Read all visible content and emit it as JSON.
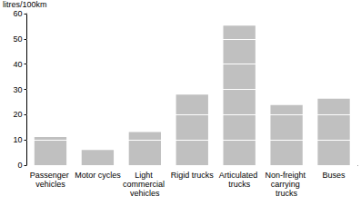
{
  "chart_data": {
    "type": "bar",
    "y_label": "litres/100km",
    "categories": [
      "Passenger vehicles",
      "Motor cycles",
      "Light commercial vehicles",
      "Rigid trucks",
      "Articulated trucks",
      "Non-freight carrying trucks",
      "Buses"
    ],
    "values": [
      11.1,
      6.0,
      13.1,
      27.9,
      55.2,
      23.8,
      26.3
    ],
    "color": "#c0c0c0",
    "ylim": [
      0,
      60
    ],
    "yticks": [
      0,
      10,
      20,
      30,
      40,
      50,
      60
    ],
    "grid": true
  }
}
